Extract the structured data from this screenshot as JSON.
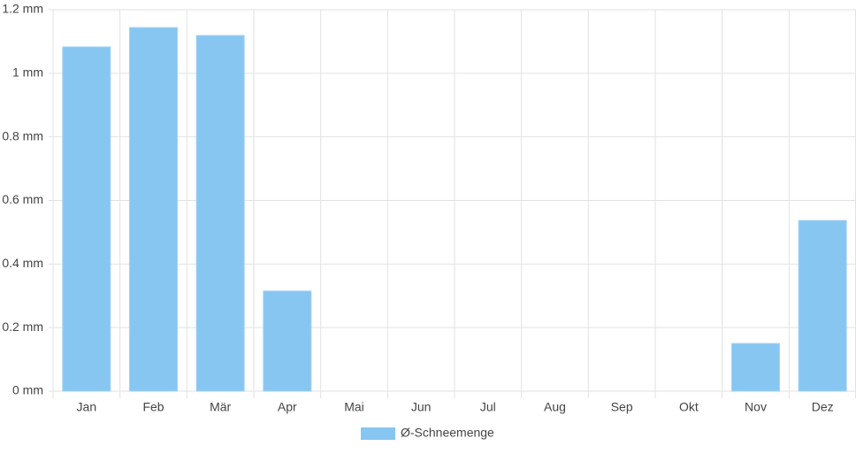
{
  "chart_data": {
    "type": "bar",
    "categories": [
      "Jan",
      "Feb",
      "Mär",
      "Apr",
      "Mai",
      "Jun",
      "Jul",
      "Aug",
      "Sep",
      "Okt",
      "Nov",
      "Dez"
    ],
    "series": [
      {
        "name": "Ø-Schneemenge",
        "color": "#87c6f1",
        "values": [
          1.083,
          1.144,
          1.119,
          0.315,
          0,
          0,
          0,
          0,
          0,
          0,
          0.15,
          0.537
        ]
      }
    ],
    "ylim": [
      0,
      1.2
    ],
    "yticks": [
      {
        "value": 0,
        "label": "0 mm"
      },
      {
        "value": 0.2,
        "label": "0.2 mm"
      },
      {
        "value": 0.4,
        "label": "0.4 mm"
      },
      {
        "value": 0.6,
        "label": "0.6 mm"
      },
      {
        "value": 0.8,
        "label": "0.8 mm"
      },
      {
        "value": 1,
        "label": "1 mm"
      },
      {
        "value": 1.2,
        "label": "1.2 mm"
      }
    ],
    "grid": true,
    "legend": "bottom"
  }
}
